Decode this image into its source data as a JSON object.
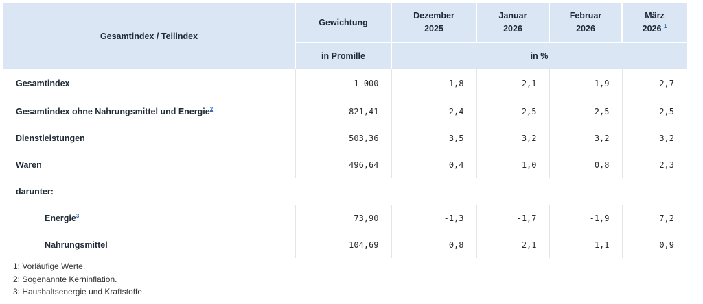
{
  "header": {
    "col_label": "Gesamtindex / Teilindex",
    "weight_label": "Gewichtung",
    "months": [
      {
        "month": "Dezember",
        "year": "2025",
        "note": ""
      },
      {
        "month": "Januar",
        "year": "2026",
        "note": ""
      },
      {
        "month": "Februar",
        "year": "2026",
        "note": ""
      },
      {
        "month": "März",
        "year": "2026",
        "note": "1"
      }
    ],
    "unit_weight": "in Promille",
    "unit_percent": "in %"
  },
  "rows": [
    {
      "label": "Gesamtindex",
      "note": "",
      "weight": "1 000",
      "values": [
        "1,8",
        "2,1",
        "1,9",
        "2,7"
      ]
    },
    {
      "label": "Gesamtindex ohne Nahrungsmittel und Energie",
      "note": "2",
      "weight": "821,41",
      "values": [
        "2,4",
        "2,5",
        "2,5",
        "2,5"
      ]
    },
    {
      "label": "Dienstleistungen",
      "note": "",
      "weight": "503,36",
      "values": [
        "3,5",
        "3,2",
        "3,2",
        "3,2"
      ]
    },
    {
      "label": "Waren",
      "note": "",
      "weight": "496,64",
      "values": [
        "0,4",
        "1,0",
        "0,8",
        "2,3"
      ]
    }
  ],
  "subheading": "darunter:",
  "subrows": [
    {
      "label": "Energie",
      "note": "3",
      "weight": "73,90",
      "values": [
        "-1,3",
        "-1,7",
        "-1,9",
        "7,2"
      ]
    },
    {
      "label": "Nahrungsmittel",
      "note": "",
      "weight": "104,69",
      "values": [
        "0,8",
        "2,1",
        "1,1",
        "0,9"
      ]
    }
  ],
  "footnotes": [
    "1: Vorläufige Werte.",
    "2: Sogenannte Kerninflation.",
    "3: Haushaltsenergie und Kraftstoffe."
  ]
}
